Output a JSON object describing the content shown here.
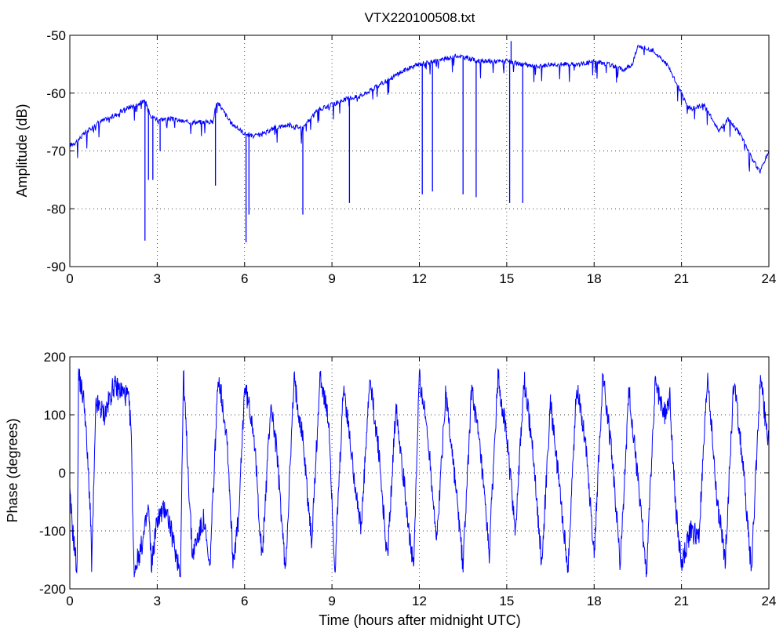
{
  "window": {
    "title": "VTX220100508.txt"
  },
  "chart_data": [
    {
      "type": "line",
      "title": "VTX220100508.txt",
      "xlabel": "",
      "ylabel": "Amplitude (dB)",
      "xlim": [
        0,
        24
      ],
      "ylim": [
        -90,
        -50
      ],
      "xticks": [
        0,
        3,
        6,
        9,
        12,
        15,
        18,
        21,
        24
      ],
      "yticks": [
        -90,
        -80,
        -70,
        -60,
        -50
      ],
      "grid": true,
      "color": "#0000ff",
      "series": [
        {
          "x": [
            0,
            0.2,
            0.5,
            1,
            1.5,
            2,
            2.3,
            2.5,
            2.6,
            2.8,
            3,
            3.5,
            4,
            4.5,
            4.9,
            5.05,
            5.2,
            5.5,
            6,
            6.3,
            6.7,
            7,
            7.5,
            8,
            8.5,
            9,
            9.5,
            10,
            10.5,
            11,
            11.5,
            12,
            12.5,
            13,
            13.3,
            13.7,
            14,
            14.5,
            15,
            15.5,
            16,
            16.5,
            17,
            17.5,
            18,
            18.5,
            19,
            19.3,
            19.5,
            20,
            20.5,
            21,
            21.2,
            21.5,
            21.8,
            22,
            22.3,
            22.6,
            23,
            23.3,
            23.5,
            23.7,
            24
          ],
          "y": [
            -69,
            -68.5,
            -67,
            -65,
            -64,
            -62.5,
            -62,
            -61.5,
            -61.5,
            -64,
            -64.5,
            -64.5,
            -65,
            -65,
            -65,
            -61.5,
            -62.5,
            -65,
            -67,
            -67.5,
            -67,
            -66,
            -65.5,
            -66,
            -63,
            -62,
            -61,
            -60.5,
            -59,
            -57.5,
            -56,
            -55,
            -54.5,
            -54,
            -53.5,
            -54,
            -54.5,
            -54.5,
            -54.5,
            -55,
            -55.5,
            -55,
            -55,
            -55,
            -54.5,
            -55,
            -56,
            -55,
            -52,
            -52.5,
            -55,
            -60,
            -62.5,
            -62.5,
            -62,
            -64,
            -66.5,
            -64.5,
            -67,
            -70,
            -72,
            -73.5,
            -70
          ]
        }
      ],
      "spikes": [
        [
          2.58,
          -85.5
        ],
        [
          2.7,
          -75
        ],
        [
          2.85,
          -75
        ],
        [
          3.1,
          -70
        ],
        [
          5.0,
          -76
        ],
        [
          6.05,
          -85.8
        ],
        [
          6.15,
          -81
        ],
        [
          8.0,
          -81
        ],
        [
          9.6,
          -79
        ],
        [
          12.1,
          -77.5
        ],
        [
          12.45,
          -77
        ],
        [
          13.5,
          -77.5
        ],
        [
          13.95,
          -78
        ],
        [
          15.1,
          -79
        ],
        [
          15.55,
          -79
        ],
        [
          15.15,
          -51
        ]
      ]
    },
    {
      "type": "line",
      "title": "",
      "xlabel": "Time (hours after midnight UTC)",
      "ylabel": "Phase (degrees)",
      "xlim": [
        0,
        24
      ],
      "ylim": [
        -200,
        200
      ],
      "xticks": [
        0,
        3,
        6,
        9,
        12,
        15,
        18,
        21,
        24
      ],
      "yticks": [
        -200,
        -100,
        0,
        100,
        200
      ],
      "grid": true,
      "color": "#0000ff",
      "series": [
        {
          "note_wraps": "phase sawtooth wrapping between -180 and 180",
          "x": [
            0,
            0.1,
            0.25,
            0.3,
            0.5,
            0.7,
            0.75,
            0.9,
            1.2,
            1.5,
            1.8,
            2.0,
            2.1,
            2.2,
            2.5,
            2.7,
            2.8,
            3.0,
            3.3,
            3.6,
            3.8,
            3.9,
            4.2,
            4.6,
            4.8,
            5.1,
            5.4,
            5.6,
            5.8,
            6.0,
            6.3,
            6.6,
            6.9,
            7.1,
            7.4,
            7.7,
            8.0,
            8.3,
            8.6,
            8.9,
            9.1,
            9.4,
            9.7,
            10.0,
            10.3,
            10.6,
            10.9,
            11.2,
            11.5,
            11.8,
            12.0,
            12.3,
            12.6,
            12.9,
            13.2,
            13.5,
            13.8,
            14.1,
            14.4,
            14.7,
            15.0,
            15.3,
            15.6,
            15.9,
            16.2,
            16.5,
            16.8,
            17.1,
            17.4,
            17.7,
            18.0,
            18.3,
            18.6,
            18.9,
            19.2,
            19.5,
            19.8,
            20.1,
            20.4,
            20.6,
            20.8,
            21.0,
            21.3,
            21.6,
            21.9,
            22.2,
            22.5,
            22.8,
            23.1,
            23.4,
            23.7,
            24.0
          ],
          "y": [
            -40,
            -100,
            -170,
            170,
            120,
            -60,
            -160,
            120,
            100,
            150,
            140,
            130,
            80,
            -170,
            -120,
            -60,
            -160,
            -80,
            -60,
            -130,
            -170,
            170,
            -140,
            -80,
            -170,
            170,
            60,
            -150,
            -80,
            150,
            80,
            -150,
            120,
            40,
            -170,
            160,
            60,
            -120,
            170,
            80,
            -170,
            150,
            20,
            -100,
            160,
            40,
            -150,
            120,
            -30,
            -170,
            170,
            60,
            -120,
            140,
            0,
            -160,
            150,
            30,
            -140,
            170,
            60,
            -100,
            160,
            40,
            -160,
            120,
            -20,
            -170,
            150,
            60,
            -140,
            170,
            40,
            -160,
            140,
            -10,
            -170,
            160,
            100,
            130,
            -60,
            -160,
            -100,
            -110,
            170,
            -40,
            -150,
            160,
            20,
            -170,
            160,
            50
          ]
        }
      ]
    }
  ]
}
